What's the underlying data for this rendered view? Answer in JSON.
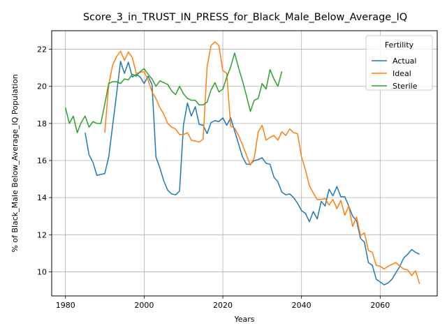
{
  "chart_data": {
    "type": "line",
    "title": "Score_3_in_TRUST_IN_PRESS_for_Black_Male_Below_Average_IQ",
    "xlabel": "Years",
    "ylabel": "% of Black_Male Below_Average_IQ Population",
    "xlim": [
      1976.5,
      2074.5
    ],
    "ylim": [
      8.7,
      23.0
    ],
    "xticks": [
      1980,
      2000,
      2020,
      2040,
      2060
    ],
    "yticks": [
      10,
      12,
      14,
      16,
      18,
      20,
      22
    ],
    "grid": true,
    "legend": {
      "title": "Fertility",
      "placement": "top-right"
    },
    "series": [
      {
        "name": "Actual",
        "color": "#1f77b4",
        "x": [
          1985,
          1986,
          1987,
          1988,
          1989,
          1990,
          1991,
          1992,
          1993,
          1994,
          1995,
          1996,
          1997,
          1998,
          1999,
          2000,
          2001,
          2002,
          2003,
          2004,
          2005,
          2006,
          2007,
          2008,
          2009,
          2010,
          2011,
          2012,
          2013,
          2014,
          2015,
          2016,
          2017,
          2018,
          2019,
          2020,
          2021,
          2022,
          2023,
          2024,
          2025,
          2026,
          2027,
          2028,
          2029,
          2030,
          2031,
          2032,
          2033,
          2034,
          2035,
          2036,
          2037,
          2038,
          2039,
          2040,
          2041,
          2042,
          2043,
          2044,
          2045,
          2046,
          2047,
          2048,
          2049,
          2050,
          2051,
          2052,
          2053,
          2054,
          2055,
          2056,
          2057,
          2058,
          2059,
          2060,
          2061,
          2062,
          2063,
          2064,
          2065,
          2066,
          2067,
          2068,
          2069,
          2070
        ],
        "values": [
          17.5,
          16.3,
          15.9,
          15.2,
          15.25,
          15.3,
          16.2,
          17.9,
          19.6,
          21.35,
          20.7,
          21.3,
          20.5,
          20.65,
          20.5,
          20.15,
          20.55,
          20.1,
          16.2,
          15.6,
          14.9,
          14.4,
          14.2,
          14.15,
          14.35,
          17.9,
          19.1,
          18.4,
          18.9,
          17.95,
          17.9,
          17.45,
          18.05,
          18.15,
          18.1,
          18.3,
          17.9,
          18.3,
          17.6,
          16.9,
          16.2,
          15.8,
          15.8,
          16.0,
          16.05,
          16.15,
          15.85,
          15.8,
          15.1,
          14.85,
          14.3,
          14.15,
          14.2,
          14.0,
          13.7,
          13.3,
          13.15,
          12.7,
          13.25,
          12.85,
          13.8,
          13.55,
          14.45,
          14.1,
          14.6,
          14.05,
          14.05,
          13.55,
          13.0,
          12.75,
          11.8,
          11.6,
          10.5,
          10.35,
          9.6,
          9.45,
          9.3,
          9.4,
          9.6,
          9.95,
          10.3,
          10.75,
          10.95,
          11.2,
          11.05,
          10.95
        ]
      },
      {
        "name": "Ideal",
        "color": "#ff7f0e",
        "x": [
          1990,
          1991,
          1992,
          1993,
          1994,
          1995,
          1996,
          1997,
          1998,
          1999,
          2000,
          2001,
          2002,
          2003,
          2004,
          2005,
          2006,
          2007,
          2008,
          2009,
          2010,
          2011,
          2012,
          2013,
          2014,
          2015,
          2016,
          2017,
          2018,
          2019,
          2020,
          2021,
          2022,
          2023,
          2024,
          2025,
          2026,
          2027,
          2028,
          2029,
          2030,
          2031,
          2032,
          2033,
          2034,
          2035,
          2036,
          2037,
          2038,
          2039,
          2040,
          2041,
          2042,
          2043,
          2044,
          2045,
          2046,
          2047,
          2048,
          2049,
          2050,
          2051,
          2052,
          2053,
          2054,
          2055,
          2056,
          2057,
          2058,
          2059,
          2060,
          2061,
          2062,
          2063,
          2064,
          2065,
          2066,
          2067,
          2068,
          2069,
          2070
        ],
        "values": [
          17.5,
          20.1,
          21.15,
          21.6,
          21.9,
          21.4,
          21.85,
          21.55,
          20.7,
          20.75,
          20.8,
          20.35,
          19.7,
          19.35,
          18.85,
          18.5,
          18.0,
          17.8,
          17.7,
          17.4,
          17.4,
          17.5,
          17.1,
          17.05,
          17.0,
          17.15,
          21.05,
          22.2,
          22.4,
          22.2,
          20.85,
          20.7,
          17.85,
          17.75,
          17.35,
          16.85,
          16.3,
          15.75,
          16.15,
          17.55,
          17.9,
          17.1,
          17.25,
          17.35,
          17.1,
          17.55,
          17.35,
          17.7,
          17.5,
          17.45,
          16.2,
          15.5,
          14.65,
          14.25,
          13.9,
          13.9,
          13.95,
          13.6,
          13.9,
          13.4,
          13.85,
          13.05,
          13.55,
          12.45,
          12.95,
          11.95,
          12.1,
          11.15,
          11.05,
          10.35,
          10.3,
          10.15,
          10.3,
          10.4,
          10.5,
          10.3,
          10.15,
          10.1,
          9.8,
          10.05,
          9.35
        ]
      },
      {
        "name": "Sterile",
        "color": "#2ca02c",
        "x": [
          1980,
          1981,
          1982,
          1983,
          1984,
          1985,
          1986,
          1987,
          1988,
          1989,
          1990,
          1991,
          1992,
          1993,
          1994,
          1995,
          1996,
          1997,
          1998,
          1999,
          2000,
          2001,
          2002,
          2003,
          2004,
          2005,
          2006,
          2007,
          2008,
          2009,
          2010,
          2011,
          2012,
          2013,
          2014,
          2015,
          2016,
          2017,
          2018,
          2019,
          2020,
          2021,
          2022,
          2023,
          2024,
          2025,
          2026,
          2027,
          2028,
          2029,
          2030,
          2031,
          2032,
          2033,
          2034,
          2035
        ],
        "values": [
          18.85,
          18.0,
          18.4,
          17.5,
          18.05,
          18.4,
          17.8,
          18.1,
          18.0,
          18.0,
          19.05,
          20.15,
          20.25,
          20.25,
          20.15,
          20.4,
          20.35,
          20.65,
          20.55,
          20.8,
          20.95,
          20.65,
          20.4,
          20.0,
          20.3,
          20.2,
          20.1,
          19.75,
          19.55,
          20.0,
          19.6,
          19.35,
          19.25,
          19.25,
          19.0,
          19.0,
          19.15,
          19.8,
          20.2,
          19.7,
          19.85,
          20.5,
          21.05,
          21.8,
          21.0,
          20.3,
          19.5,
          18.65,
          19.25,
          19.35,
          20.15,
          19.85,
          20.9,
          20.4,
          20.0,
          20.8
        ]
      }
    ]
  }
}
